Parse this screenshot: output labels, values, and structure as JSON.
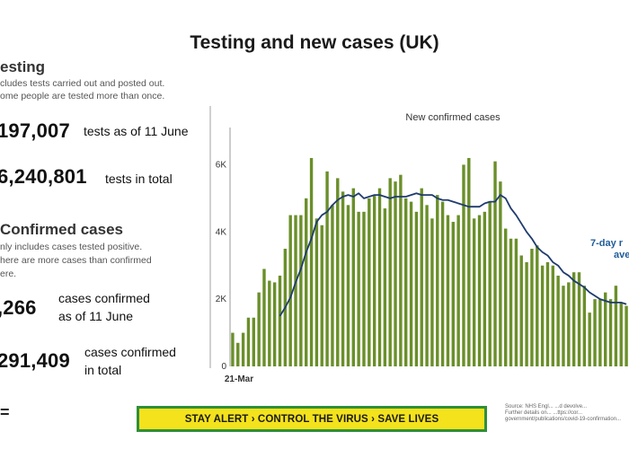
{
  "title": "Testing and new cases (UK)",
  "testing": {
    "heading": "esting",
    "note_1": "cludes tests carried out and posted out.",
    "note_2": "ome people are tested more than once.",
    "daily_value": "197,007",
    "daily_label": "tests as of 11 June",
    "total_value": "6,240,801",
    "total_label": "tests in total"
  },
  "cases": {
    "heading": "Confirmed cases",
    "note_1": "nly includes cases tested positive.",
    "note_2": "here are more cases than confirmed",
    "note_3": "ere.",
    "daily_value": ",266",
    "daily_label_1": "cases confirmed",
    "daily_label_2": "as of 11 June",
    "total_value": "291,409",
    "total_label_1": "cases confirmed",
    "total_label_2": "in total"
  },
  "corner_mark": "=",
  "banner": "STAY ALERT › CONTROL THE VIRUS › SAVE LIVES",
  "source": {
    "line_1": "Source: NHS Engl... ...d devolve...",
    "line_2": "Further details on... ...ttps://cor...",
    "line_3": "government/publications/covid-19-confirmation..."
  },
  "colors": {
    "bar": "#6a8f2a",
    "line": "#1f3b6e",
    "banner_fill": "#f4e21c",
    "banner_border": "#2f8f3a"
  },
  "chart_data": {
    "type": "bar",
    "title": "New confirmed cases",
    "start_label": "21-Mar",
    "ylim": [
      0,
      7000
    ],
    "y_ticks": [
      0,
      2000,
      4000,
      6000
    ],
    "y_tick_labels": [
      "0",
      "2K",
      "4K",
      "6K"
    ],
    "line_label_1": "7-day r",
    "line_label_2": "ave",
    "series": [
      {
        "type": "bar",
        "values": [
          1000,
          700,
          1000,
          1450,
          1450,
          2200,
          2900,
          2550,
          2500,
          2700,
          3500,
          4500,
          4500,
          4500,
          5000,
          6200,
          4400,
          4200,
          5800,
          4800,
          5600,
          5200,
          4800,
          5300,
          4600,
          4600,
          5000,
          5100,
          5300,
          4700,
          5600,
          5500,
          5700,
          5000,
          4900,
          4600,
          5300,
          4800,
          4400,
          5100,
          4900,
          4500,
          4300,
          4500,
          6000,
          6200,
          4400,
          4500,
          4600,
          4900,
          6100,
          5500,
          4100,
          3800,
          3800,
          3300,
          3100,
          3500,
          3600,
          3000,
          3100,
          3000,
          2700,
          2400,
          2500,
          2800,
          2800,
          2400,
          1600,
          2000,
          2000,
          2200,
          2000,
          2400,
          1900,
          1800
        ]
      },
      {
        "type": "line",
        "values": [
          null,
          null,
          null,
          null,
          null,
          null,
          null,
          null,
          null,
          1500,
          1750,
          2050,
          2500,
          2900,
          3400,
          3800,
          4300,
          4500,
          4600,
          4800,
          4950,
          5050,
          5100,
          5050,
          5150,
          5000,
          5050,
          5100,
          5100,
          5050,
          5000,
          5050,
          5050,
          5050,
          5100,
          5150,
          5100,
          5100,
          5100,
          5000,
          4950,
          4950,
          4900,
          4850,
          4800,
          4750,
          4750,
          4750,
          4850,
          4900,
          4900,
          5100,
          5000,
          4700,
          4500,
          4250,
          4000,
          3800,
          3550,
          3400,
          3300,
          3100,
          3000,
          2800,
          2700,
          2550,
          2450,
          2350,
          2200,
          2100,
          2000,
          1950,
          1900,
          1900,
          1900,
          1850
        ]
      }
    ]
  }
}
